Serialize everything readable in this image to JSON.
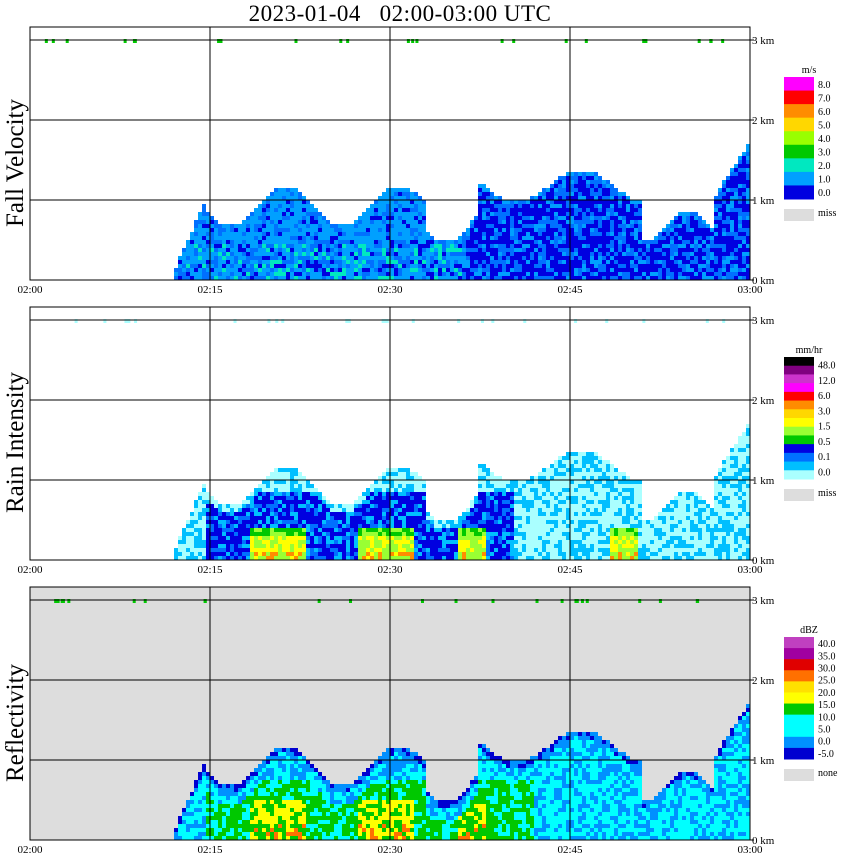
{
  "title": "2023-01-04   02:00-03:00 UTC",
  "x_ticks": [
    "02:00",
    "02:15",
    "02:30",
    "02:45",
    "03:00"
  ],
  "y_ticks": [
    "0 km",
    "1 km",
    "2 km",
    "3 km"
  ],
  "panels": [
    {
      "id": "fall-velocity",
      "ylabel": "Fall Velocity",
      "background": "#ffffff",
      "colorbar": {
        "unit": "m/s",
        "labels": [
          "8.0",
          "7.0",
          "6.0",
          "5.0",
          "4.0",
          "3.0",
          "2.0",
          "1.0",
          "0.0"
        ],
        "colors": [
          "#ff00ff",
          "#ff0000",
          "#ff8c00",
          "#ffd700",
          "#99ff00",
          "#00c800",
          "#00e8c0",
          "#00a0ff",
          "#0000e0"
        ],
        "miss_label": "miss",
        "miss_color": "#dddddd"
      }
    },
    {
      "id": "rain-intensity",
      "ylabel": "Rain Intensity",
      "background": "#ffffff",
      "colorbar": {
        "unit": "mm/hr",
        "labels": [
          "48.0",
          "12.0",
          "6.0",
          "3.0",
          "1.5",
          "0.5",
          "0.1",
          "0.0"
        ],
        "colors": [
          "#000000",
          "#800080",
          "#cc33cc",
          "#ff00ff",
          "#ff0000",
          "#ff8c00",
          "#ffd700",
          "#ffff00",
          "#99ff33",
          "#00c800",
          "#0000e0",
          "#0070ff",
          "#00bfff",
          "#aaffff"
        ],
        "miss_label": "miss",
        "miss_color": "#dddddd"
      }
    },
    {
      "id": "reflectivity",
      "ylabel": "Reflectivity",
      "background": "#dddddd",
      "colorbar": {
        "unit": "dBZ",
        "labels": [
          "40.0",
          "35.0",
          "30.0",
          "25.0",
          "20.0",
          "15.0",
          "10.0",
          "5.0",
          "0.0",
          "-5.0"
        ],
        "colors": [
          "#c040c0",
          "#a000a0",
          "#e00000",
          "#ff7000",
          "#ffe000",
          "#ffff00",
          "#00c800",
          "#00ffff",
          "#00ffff",
          "#0090ff",
          "#0000d0"
        ],
        "miss_label": "none",
        "miss_color": "#dddddd"
      }
    }
  ],
  "chart_data": {
    "type": "heatmap",
    "title": "2023-01-04   02:00-03:00 UTC",
    "xlabel": "",
    "x_range": [
      "02:00",
      "03:00"
    ],
    "y_range_km": [
      0,
      3.2
    ],
    "grid": true,
    "panels": [
      "Fall Velocity",
      "Rain Intensity",
      "Reflectivity"
    ],
    "units": [
      "m/s",
      "mm/hr",
      "dBZ"
    ]
  }
}
